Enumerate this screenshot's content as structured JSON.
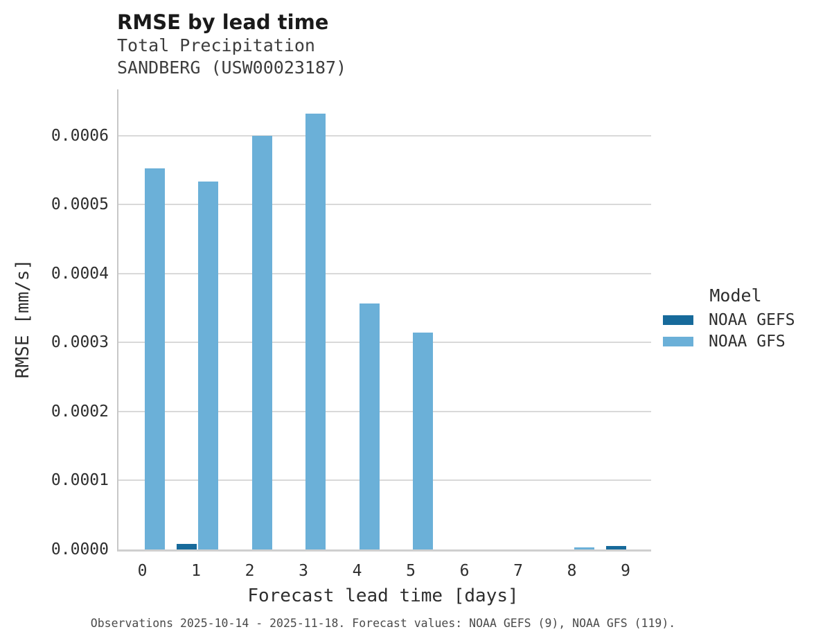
{
  "chart_data": {
    "type": "bar",
    "title": "RMSE by lead time",
    "subtitle": [
      "Total Precipitation",
      "SANDBERG (USW00023187)"
    ],
    "xlabel": "Forecast lead time [days]",
    "ylabel": "RMSE [mm/s]",
    "categories": [
      "0",
      "1",
      "2",
      "3",
      "4",
      "5",
      "6",
      "7",
      "8",
      "9"
    ],
    "series": [
      {
        "name": "NOAA GEFS",
        "color": "#176a9b",
        "values": [
          0,
          8.5e-06,
          0,
          0,
          0,
          0,
          0,
          0,
          0,
          5.5e-06
        ]
      },
      {
        "name": "NOAA GFS",
        "color": "#6bb0d8",
        "values": [
          0.000553,
          0.000533,
          0.0006,
          0.000632,
          0.000357,
          0.000314,
          0,
          0,
          3.5e-06,
          0
        ]
      }
    ],
    "ylim": [
      0,
      0.000667
    ],
    "yticks": [
      {
        "value": 0.0,
        "label": "0.0000"
      },
      {
        "value": 0.0001,
        "label": "0.0001"
      },
      {
        "value": 0.0002,
        "label": "0.0002"
      },
      {
        "value": 0.0003,
        "label": "0.0003"
      },
      {
        "value": 0.0004,
        "label": "0.0004"
      },
      {
        "value": 0.0005,
        "label": "0.0005"
      },
      {
        "value": 0.0006,
        "label": "0.0006"
      }
    ],
    "grid": true,
    "legend": {
      "title": "Model",
      "position": "right"
    },
    "caption": "Observations 2025-10-14 - 2025-11-18. Forecast values: NOAA GEFS (9), NOAA GFS (119)."
  },
  "style": {
    "grid_color": "#d9d9d9",
    "spine_color": "#c7c7c7",
    "text_color": "#2e2e2e",
    "caption_color": "#4a4a4a"
  }
}
